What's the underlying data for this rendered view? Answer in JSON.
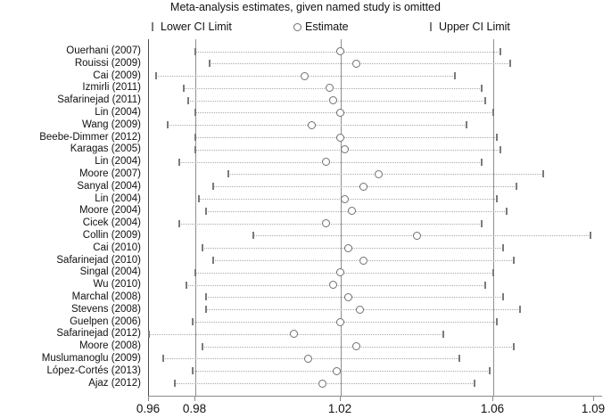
{
  "chart_data": {
    "type": "scatter",
    "subtype": "leave-one-out-meta-analysis-forest",
    "title": "Meta-analysis estimates, given named study is omitted",
    "legend": {
      "lower": "Lower CI Limit",
      "estimate": "Estimate",
      "upper": "Upper CI Limit"
    },
    "x_tick_labels": [
      "0.96",
      "0.98",
      "1.02",
      "1.06",
      "1.09"
    ],
    "x_ticks": [
      0.96,
      0.98,
      1.02,
      1.06,
      1.09
    ],
    "xlim": [
      0.96,
      1.09
    ],
    "reference_lines": [
      0.98,
      1.02,
      1.06
    ],
    "grid": "vertical-reference-lines-only",
    "legend_position": "top",
    "colors": {
      "axis": "#4a4a4a",
      "reference_line": "#8f8f8f",
      "ci_dotted_line": "#a9a9a9",
      "ci_bracket": "#7a7a7a",
      "estimate_circle_stroke": "#6f6f6f",
      "text": "#111111"
    },
    "studies": [
      {
        "label": "Ouerhani (2007)",
        "lower": 0.98,
        "estimate": 1.02,
        "upper": 1.062
      },
      {
        "label": "Rouissi (2009)",
        "lower": 0.984,
        "estimate": 1.024,
        "upper": 1.065
      },
      {
        "label": "Cai (2009)",
        "lower": 0.963,
        "estimate": 1.01,
        "upper": 1.05
      },
      {
        "label": "Izmirli (2011)",
        "lower": 0.975,
        "estimate": 1.017,
        "upper": 1.057
      },
      {
        "label": "Safarinejad (2011)",
        "lower": 0.977,
        "estimate": 1.018,
        "upper": 1.058
      },
      {
        "label": "Lin (2004)",
        "lower": 0.98,
        "estimate": 1.02,
        "upper": 1.06
      },
      {
        "label": "Wang (2009)",
        "lower": 0.968,
        "estimate": 1.012,
        "upper": 1.053
      },
      {
        "label": "Beebe-Dimmer (2012)",
        "lower": 0.98,
        "estimate": 1.02,
        "upper": 1.061
      },
      {
        "label": "Karagas (2005)",
        "lower": 0.98,
        "estimate": 1.021,
        "upper": 1.062
      },
      {
        "label": "Lin (2004)",
        "lower": 0.973,
        "estimate": 1.016,
        "upper": 1.057
      },
      {
        "label": "Moore (2007)",
        "lower": 0.989,
        "estimate": 1.03,
        "upper": 1.075
      },
      {
        "label": "Sanyal (2004)",
        "lower": 0.985,
        "estimate": 1.026,
        "upper": 1.067
      },
      {
        "label": "Lin (2004)",
        "lower": 0.981,
        "estimate": 1.021,
        "upper": 1.061
      },
      {
        "label": "Moore (2004)",
        "lower": 0.983,
        "estimate": 1.023,
        "upper": 1.064
      },
      {
        "label": "Cicek (2004)",
        "lower": 0.973,
        "estimate": 1.016,
        "upper": 1.057
      },
      {
        "label": "Collin (2009)",
        "lower": 0.996,
        "estimate": 1.04,
        "upper": 1.089
      },
      {
        "label": "Cai (2010)",
        "lower": 0.982,
        "estimate": 1.022,
        "upper": 1.063
      },
      {
        "label": "Safarinejad (2010)",
        "lower": 0.985,
        "estimate": 1.026,
        "upper": 1.066
      },
      {
        "label": "Singal (2004)",
        "lower": 0.98,
        "estimate": 1.02,
        "upper": 1.06
      },
      {
        "label": "Wu (2010)",
        "lower": 0.976,
        "estimate": 1.018,
        "upper": 1.058
      },
      {
        "label": "Marchal (2008)",
        "lower": 0.983,
        "estimate": 1.022,
        "upper": 1.063
      },
      {
        "label": "Stevens (2008)",
        "lower": 0.983,
        "estimate": 1.025,
        "upper": 1.068
      },
      {
        "label": "Guelpen (2006)",
        "lower": 0.979,
        "estimate": 1.02,
        "upper": 1.061
      },
      {
        "label": "Safarinejad (2012)",
        "lower": 0.96,
        "estimate": 1.007,
        "upper": 1.047
      },
      {
        "label": "Moore (2008)",
        "lower": 0.982,
        "estimate": 1.024,
        "upper": 1.066
      },
      {
        "label": "Muslumanoglu (2009)",
        "lower": 0.966,
        "estimate": 1.011,
        "upper": 1.051
      },
      {
        "label": "López-Cortés (2013)",
        "lower": 0.979,
        "estimate": 1.019,
        "upper": 1.059
      },
      {
        "label": "Ajaz (2012)",
        "lower": 0.971,
        "estimate": 1.015,
        "upper": 1.055
      }
    ]
  }
}
